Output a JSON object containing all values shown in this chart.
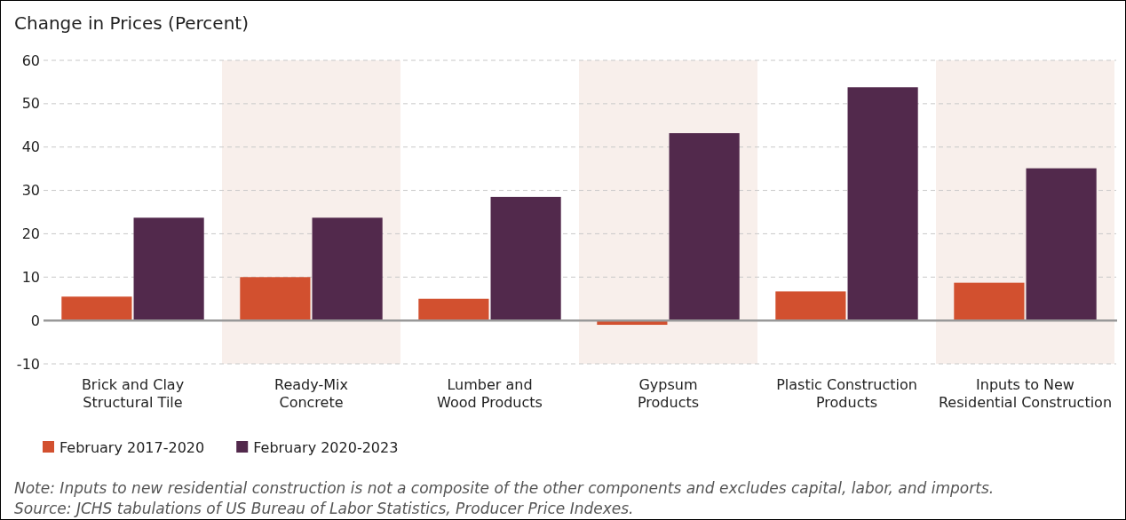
{
  "chart_data": {
    "type": "bar",
    "ylabel": "Change in Prices (Percent)",
    "categories": [
      "Brick and Clay\nStructural Tile",
      "Ready-Mix\nConcrete",
      "Lumber and\nWood Products",
      "Gypsum\nProducts",
      "Plastic Construction\nProducts",
      "Inputs to New\nResidential Construction"
    ],
    "series": [
      {
        "name": "February 2017-2020",
        "color": "#d2502f",
        "values": [
          5.5,
          10.0,
          5.0,
          -1.0,
          6.7,
          8.7
        ]
      },
      {
        "name": "February 2020-2023",
        "color": "#52294c",
        "values": [
          23.7,
          23.7,
          28.5,
          43.2,
          53.8,
          35.1
        ]
      }
    ],
    "ylim": [
      -10,
      60
    ],
    "yticks": [
      -10,
      0,
      10,
      20,
      30,
      40,
      50,
      60
    ],
    "grid": "y",
    "legend": "bottom",
    "bands": [
      {
        "axis": "x",
        "from": "Ready-Mix\nConcrete",
        "to": "Ready-Mix\nConcrete",
        "color": "#f8efeb"
      },
      {
        "axis": "x",
        "from": "Gypsum\nProducts",
        "to": "Gypsum\nProducts",
        "color": "#f8efeb"
      },
      {
        "axis": "x",
        "from": "Inputs to New\nResidential Construction",
        "to": "Inputs to New\nResidential Construction",
        "color": "#f8efeb"
      }
    ],
    "annotations": [
      "Note: Inputs to new residential construction is not a composite of the other components and excludes capital, labor, and imports.",
      "Source: JCHS tabulations of US Bureau of Labor Statistics, Producer Price Indexes."
    ]
  }
}
